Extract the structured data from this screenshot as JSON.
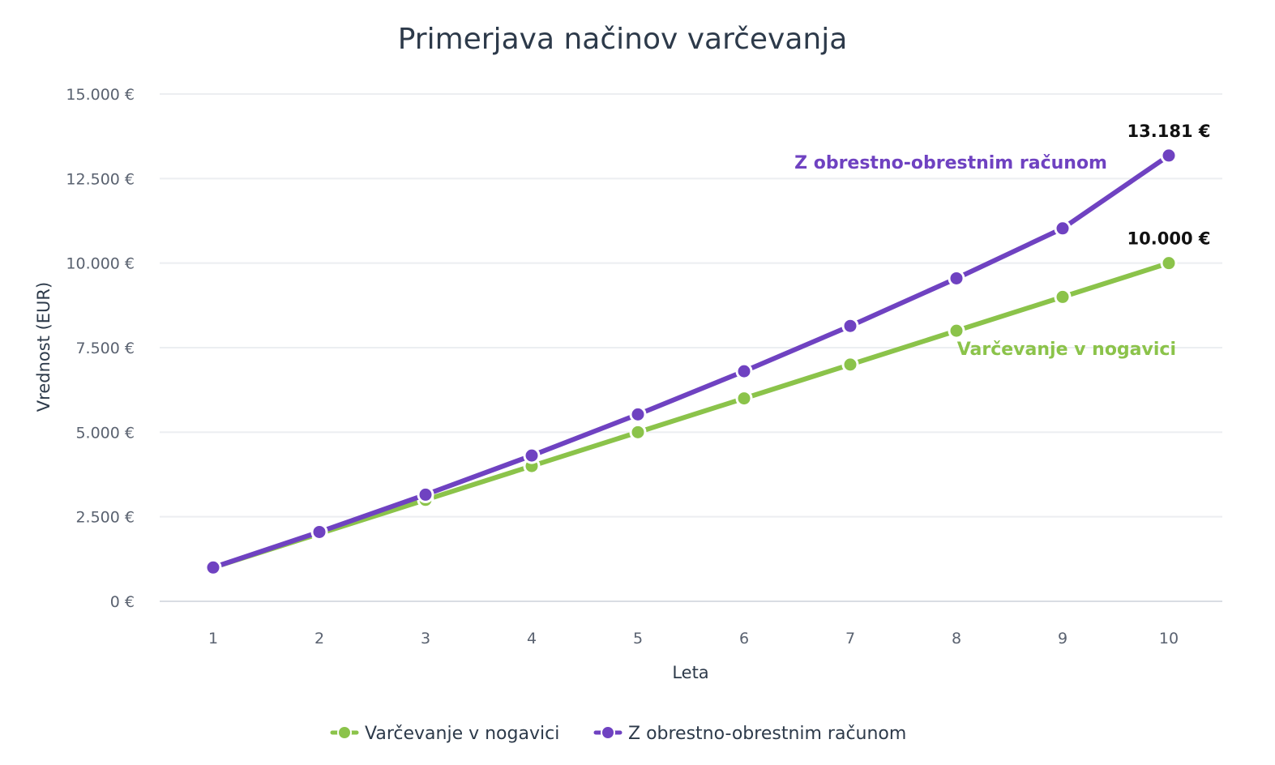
{
  "chart_data": {
    "type": "line",
    "title": "Primerjava načinov varčevanja",
    "xlabel": "Leta",
    "ylabel": "Vrednost (EUR)",
    "x": [
      1,
      2,
      3,
      4,
      5,
      6,
      7,
      8,
      9,
      10
    ],
    "x_tick_labels": [
      "1",
      "2",
      "3",
      "4",
      "5",
      "6",
      "7",
      "8",
      "9",
      "10"
    ],
    "ylim": [
      0,
      15000
    ],
    "y_ticks": [
      0,
      2500,
      5000,
      7500,
      10000,
      12500,
      15000
    ],
    "y_tick_labels": [
      "0 €",
      "2.500 €",
      "5.000 €",
      "7.500 €",
      "10.000 €",
      "12.500 €",
      "15.000 €"
    ],
    "grid": true,
    "legend_position": "bottom-center",
    "series": [
      {
        "name": "Varčevanje v nogavici",
        "color": "#8bc34a",
        "values": [
          1000,
          2000,
          3000,
          4000,
          5000,
          6000,
          7000,
          8000,
          9000,
          10000
        ],
        "inline_label": "Varčevanje v nogavici",
        "end_label": "10.000 €"
      },
      {
        "name": "Z obrestno-obrestnim računom",
        "color": "#6f42c1",
        "values": [
          1000,
          2050,
          3153,
          4310,
          5526,
          6802,
          8142,
          9549,
          11027,
          13181
        ],
        "inline_label": "Z obrestno-obrestnim računom",
        "end_label": "13.181 €"
      }
    ]
  }
}
